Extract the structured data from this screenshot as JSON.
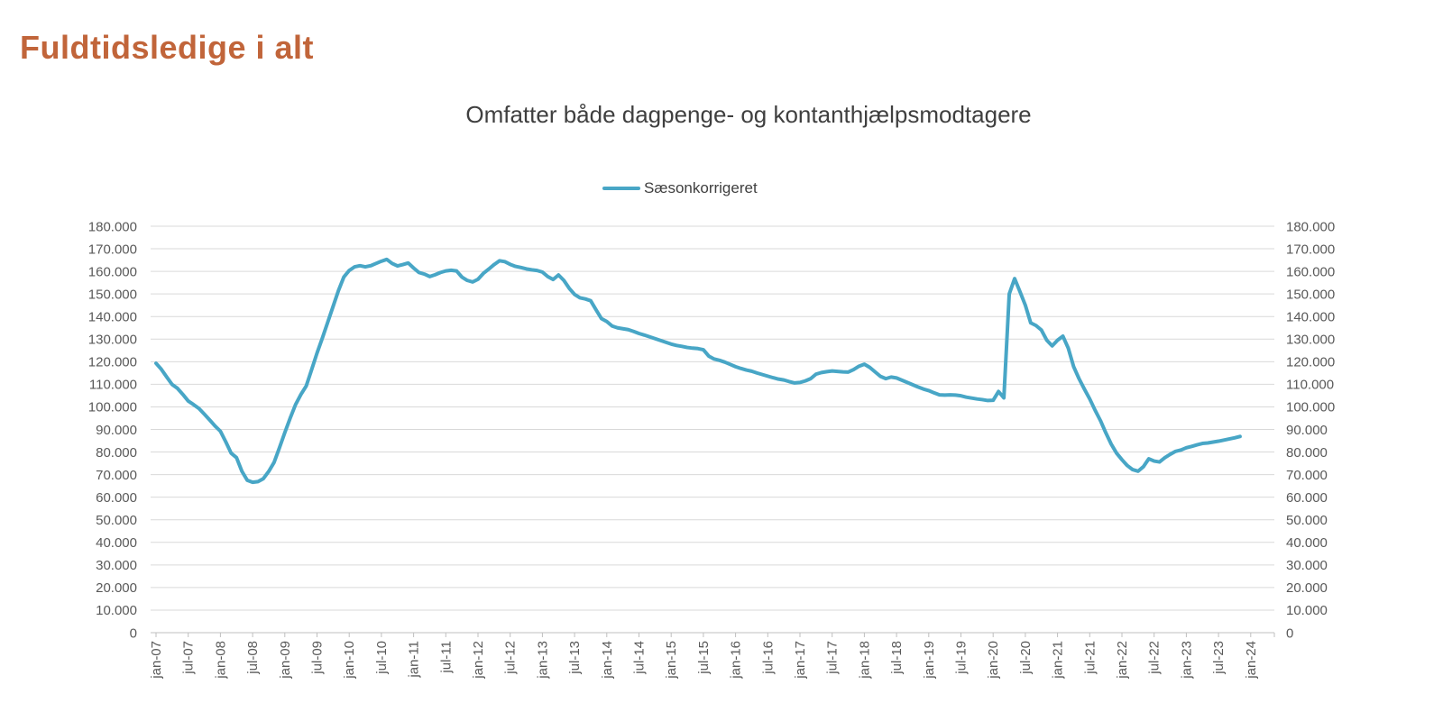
{
  "header": {
    "title": "Fuldtidsledige i alt",
    "title_color": "#C1653A"
  },
  "chart_data": {
    "type": "line",
    "title": "Omfatter både dagpenge- og kontanthjælpsmodtagere",
    "xlabel": "",
    "ylabel": "",
    "ylim": [
      0,
      180000
    ],
    "y_step": 10000,
    "grid": "horizontal",
    "dual_y_axis": true,
    "legend_position": "top-center",
    "x_start": "jan-07",
    "x_end": "nov-23",
    "x_frequency": "monthly",
    "x_tick_every_months": 6,
    "x_tick_labels": [
      "jan-07",
      "jul-07",
      "jan-08",
      "jul-08",
      "jan-09",
      "jul-09",
      "jan-10",
      "jul-10",
      "jan-11",
      "jul-11",
      "jan-12",
      "jul-12",
      "jan-13",
      "jul-13",
      "jan-14",
      "jul-14",
      "jan-15",
      "jul-15",
      "jan-16",
      "jul-16",
      "jan-17",
      "jul-17",
      "jan-18",
      "jul-18",
      "jan-19",
      "jul-19",
      "jan-20",
      "jul-20",
      "jan-21",
      "jul-21",
      "jan-22",
      "jul-22",
      "jan-23",
      "jul-23",
      "jan-24"
    ],
    "y_tick_labels": [
      "0",
      "10.000",
      "20.000",
      "30.000",
      "40.000",
      "50.000",
      "60.000",
      "70.000",
      "80.000",
      "90.000",
      "100.000",
      "110.000",
      "120.000",
      "130.000",
      "140.000",
      "150.000",
      "160.000",
      "170.000",
      "180.000"
    ],
    "colors": {
      "line": "#48A6C6",
      "gridline": "#D9D9D9",
      "axis_line": "#BFBFBF",
      "axis_text": "#595959"
    },
    "series": [
      {
        "name": "Sæsonkorrigeret",
        "color": "#48A6C6",
        "values": [
          119300,
          116600,
          113200,
          109900,
          108200,
          105500,
          102600,
          101000,
          99300,
          96800,
          94200,
          91500,
          89200,
          84500,
          79500,
          77500,
          71500,
          67500,
          66600,
          66900,
          68200,
          71400,
          75400,
          81900,
          88600,
          95000,
          101000,
          105500,
          109300,
          116500,
          123800,
          130500,
          137500,
          144500,
          151500,
          157500,
          160400,
          162000,
          162500,
          162000,
          162500,
          163500,
          164500,
          165300,
          163500,
          162400,
          163000,
          163700,
          161500,
          159500,
          158800,
          157700,
          158500,
          159500,
          160200,
          160500,
          160200,
          157500,
          156000,
          155300,
          156500,
          159100,
          161000,
          163000,
          164700,
          164300,
          163100,
          162200,
          161700,
          161100,
          160700,
          160400,
          159700,
          157700,
          156400,
          158400,
          156000,
          152500,
          149800,
          148300,
          147800,
          147000,
          143000,
          139100,
          137800,
          135800,
          135000,
          134600,
          134200,
          133400,
          132500,
          131800,
          131000,
          130200,
          129400,
          128600,
          127800,
          127200,
          126800,
          126300,
          126000,
          125800,
          125300,
          122500,
          121200,
          120600,
          119800,
          118800,
          117800,
          117000,
          116300,
          115800,
          115000,
          114300,
          113600,
          112900,
          112300,
          111900,
          111200,
          110600,
          110800,
          111500,
          112500,
          114500,
          115200,
          115600,
          115900,
          115700,
          115500,
          115400,
          116500,
          118000,
          118900,
          117500,
          115500,
          113500,
          112500,
          113200,
          112800,
          111800,
          110800,
          109800,
          108800,
          107900,
          107200,
          106200,
          105300,
          105200,
          105300,
          105200,
          104900,
          104300,
          103900,
          103500,
          103200,
          102800,
          102900,
          106800,
          104000,
          150000,
          156800,
          151000,
          145000,
          137200,
          136000,
          134000,
          129500,
          127000,
          129500,
          131300,
          126000,
          117800,
          112500,
          107900,
          103500,
          98500,
          93900,
          88500,
          83500,
          79500,
          76600,
          74000,
          72200,
          71500,
          73500,
          77000,
          76000,
          75600,
          77500,
          79000,
          80300,
          80900,
          81900,
          82500,
          83200,
          83800,
          84000,
          84400,
          84800,
          85300,
          85800,
          86300,
          86900
        ]
      }
    ]
  }
}
